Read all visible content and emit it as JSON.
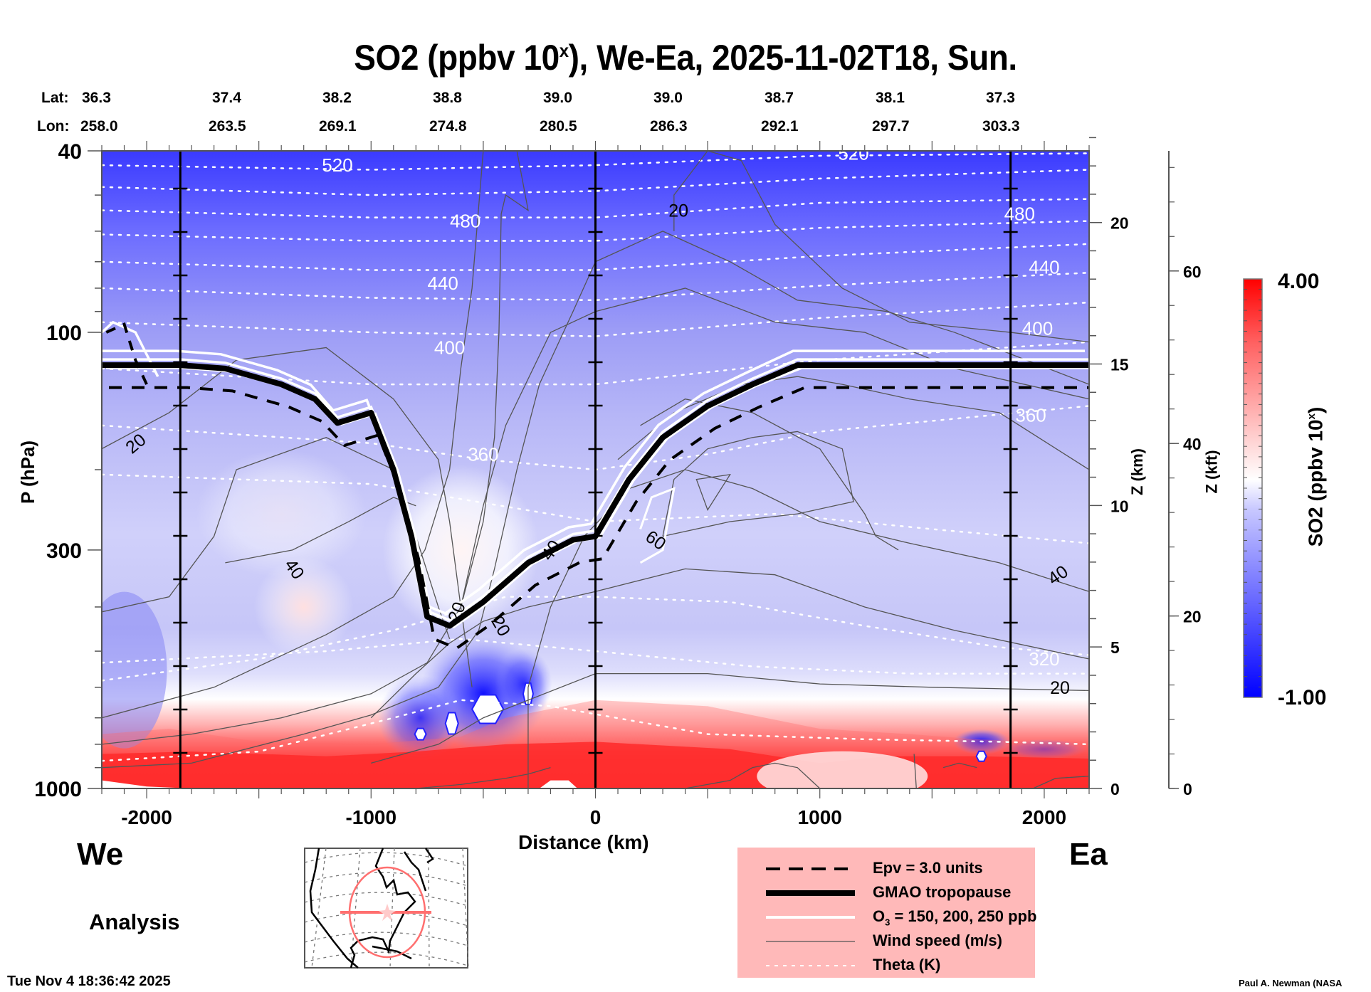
{
  "header": {
    "title_main": "SO2 (ppbv 10",
    "title_sup": "x",
    "title_rest": "), We-Ea, 2025-11-02T18, Sun.",
    "lat_key": "Lat:",
    "lon_key": "Lon:",
    "lats": [
      "36.3",
      "37.4",
      "38.2",
      "38.8",
      "39.0",
      "39.0",
      "38.7",
      "38.1",
      "37.3"
    ],
    "lons": [
      "258.0",
      "263.5",
      "269.1",
      "274.8",
      "280.5",
      "286.3",
      "292.1",
      "297.7",
      "303.3"
    ]
  },
  "labels": {
    "west": "We",
    "east": "Ea",
    "analysis": "Analysis",
    "timestamp": "Tue Nov  4 18:36:42 2025",
    "credit": "Paul A. Newman (NASA"
  },
  "legend": {
    "items": [
      {
        "label": "Epv = 3.0 units",
        "style": "dashed-black"
      },
      {
        "label": "GMAO tropopause",
        "style": "thick-black"
      },
      {
        "label_pre": "O",
        "label_sub": "3",
        "label_post": " = 150, 200, 250 ppb",
        "style": "white"
      },
      {
        "label": "Wind speed (m/s)",
        "style": "thin-gray"
      },
      {
        "label": "Theta (K)",
        "style": "dotted-white"
      }
    ]
  },
  "colors": {
    "low": "#0000ff",
    "mid": "#ffffff",
    "high": "#ff0000",
    "legend_bg": "#ffb9b9",
    "map_track": "#ff6f6f"
  },
  "chart_data": {
    "type": "heatmap",
    "title": "SO2 (ppbv 10^x), We-Ea, 2025-11-02T18, Sun.",
    "xlabel": "Distance (km)",
    "ylabel": "P (hPa)",
    "y2label": "Z (km)",
    "y3label": "Z (kft)",
    "colorbar_label": "SO2 (ppbv 10^x)",
    "xlim": [
      -2200,
      2200
    ],
    "ylim": [
      1000,
      40
    ],
    "y_scale": "log",
    "x_ticks": [
      -2000,
      -1000,
      0,
      1000,
      2000
    ],
    "x_tick_labels": [
      "-2000",
      "-1000",
      "0",
      "1000",
      "2000"
    ],
    "y_ticks": [
      40,
      100,
      300,
      1000
    ],
    "y_tick_labels": [
      "40",
      "100",
      "300",
      "1000"
    ],
    "z_km_ticks": [
      0,
      5,
      10,
      15,
      20
    ],
    "z_km_tick_labels": [
      "0",
      "5",
      "10",
      "15",
      "20"
    ],
    "z_kft_ticks": [
      0,
      20,
      40,
      60
    ],
    "z_kft_tick_labels": [
      "0",
      "20",
      "40",
      "60"
    ],
    "colorbar_range": [
      -1.0,
      4.0
    ],
    "colorbar_min_label": "-1.00",
    "colorbar_max_label": "4.00",
    "vertical_markers_km": [
      -1850,
      0,
      1850
    ],
    "theta_contours": [
      {
        "label": "520",
        "x": -1150,
        "p": 43,
        "level": 520
      },
      {
        "label": "480",
        "x": -580,
        "p": 57,
        "level": 480
      },
      {
        "label": "440",
        "x": -680,
        "p": 78,
        "level": 440
      },
      {
        "label": "400",
        "x": -650,
        "p": 108,
        "level": 400
      },
      {
        "label": "360",
        "x": -500,
        "p": 185,
        "level": 360
      },
      {
        "label": "520",
        "x": 1150,
        "p": 40.5,
        "level": 520
      },
      {
        "label": "480",
        "x": 1890,
        "p": 55,
        "level": 480
      },
      {
        "label": "440",
        "x": 2000,
        "p": 72,
        "level": 440
      },
      {
        "label": "400",
        "x": 1970,
        "p": 98,
        "level": 400
      },
      {
        "label": "360",
        "x": 1940,
        "p": 152,
        "level": 360
      },
      {
        "label": "320",
        "x": 2000,
        "p": 520,
        "level": 320
      }
    ],
    "wind_contours": [
      {
        "label": "20",
        "x": -2050,
        "p": 175,
        "level": 20
      },
      {
        "label": "40",
        "x": -1340,
        "p": 330,
        "level": 40
      },
      {
        "label": "20",
        "x": -620,
        "p": 410,
        "level": 20
      },
      {
        "label": "40",
        "x": -200,
        "p": 300,
        "level": 40
      },
      {
        "label": "20",
        "x": -420,
        "p": 440,
        "level": 20
      },
      {
        "label": "60",
        "x": 270,
        "p": 285,
        "level": 60
      },
      {
        "label": "20",
        "x": 370,
        "p": 54,
        "level": 20
      },
      {
        "label": "40",
        "x": 2060,
        "p": 340,
        "level": 40
      },
      {
        "label": "20",
        "x": 2070,
        "p": 600,
        "level": 20
      }
    ],
    "tropopause": {
      "x": [
        -2200,
        -1850,
        -1650,
        -1400,
        -1250,
        -1150,
        -1000,
        -900,
        -820,
        -750,
        -650,
        -500,
        -300,
        -100,
        0,
        150,
        300,
        500,
        700,
        900,
        1200,
        1500,
        1850,
        2200
      ],
      "p": [
        118,
        118,
        120,
        130,
        140,
        158,
        150,
        200,
        280,
        420,
        440,
        390,
        320,
        285,
        280,
        210,
        170,
        145,
        130,
        118,
        118,
        118,
        118,
        118
      ]
    },
    "so2_field_summary": "Mostly slightly negative to negative (blue) aloft, strongest blue near 40 hPa; near-zero/white around 250-350 hPa near x=-600 km; strong positive (red, up to ~4) in the boundary layer below ~800 hPa, especially -1800 to 1000 km; isolated strong-blue pockets near 650-750 hPa around x=-800 to -300 km."
  }
}
